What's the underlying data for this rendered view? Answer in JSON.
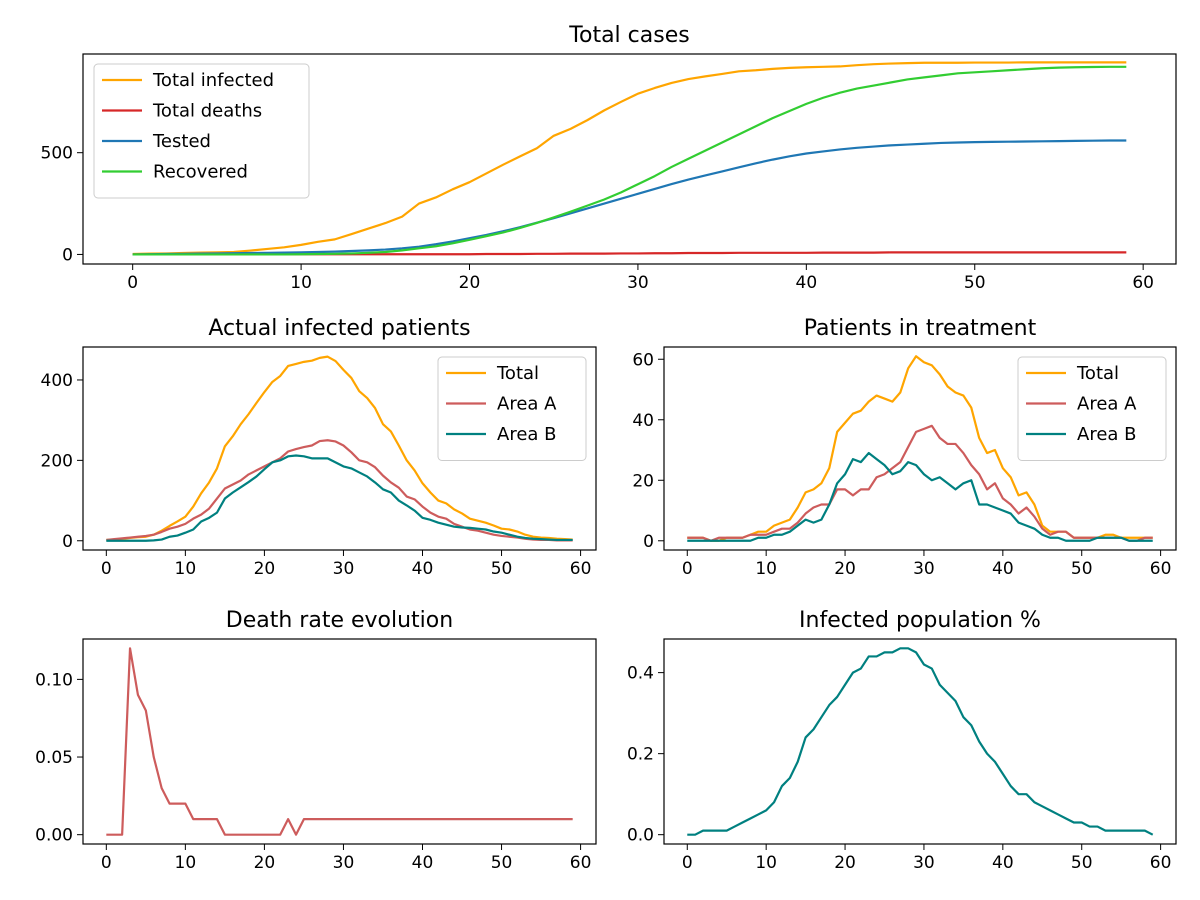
{
  "chart_data": [
    {
      "type": "line",
      "title": "Total cases",
      "xlim": [
        -2.95,
        61.95
      ],
      "ylim": [
        -47,
        985
      ],
      "xticks": [
        0,
        10,
        20,
        30,
        40,
        50,
        60
      ],
      "yticks": [
        0,
        500
      ],
      "legend_position": "upper left",
      "series": [
        {
          "name": "Total infected",
          "color": "#FFA500",
          "values": [
            2,
            4,
            5,
            7,
            9,
            10,
            12,
            19,
            27,
            35,
            47,
            62,
            74,
            100,
            127,
            154,
            186,
            250,
            280,
            320,
            355,
            398,
            441,
            482,
            522,
            583,
            617,
            660,
            708,
            750,
            790,
            818,
            843,
            862,
            875,
            887,
            900,
            905,
            912,
            917,
            920,
            922,
            924,
            930,
            935,
            938,
            940,
            942,
            942,
            942,
            943,
            943,
            943,
            944,
            944,
            944,
            944,
            944,
            944,
            944
          ]
        },
        {
          "name": "Total deaths",
          "color": "#D62728",
          "values": [
            0,
            0,
            0,
            0,
            1,
            1,
            1,
            1,
            1,
            1,
            1,
            1,
            1,
            1,
            1,
            1,
            1,
            1,
            1,
            1,
            1,
            2,
            2,
            2,
            3,
            3,
            4,
            4,
            4,
            5,
            5,
            6,
            6,
            7,
            7,
            7,
            8,
            8,
            8,
            8,
            8,
            9,
            9,
            9,
            9,
            10,
            10,
            10,
            10,
            10,
            10,
            10,
            10,
            10,
            10,
            10,
            10,
            10,
            10,
            10
          ]
        },
        {
          "name": "Tested",
          "color": "#1F77B4",
          "values": [
            0,
            1,
            2,
            3,
            4,
            5,
            6,
            7,
            8,
            9,
            10,
            12,
            14,
            17,
            20,
            24,
            30,
            38,
            50,
            64,
            80,
            96,
            114,
            134,
            156,
            178,
            202,
            226,
            250,
            274,
            298,
            322,
            346,
            368,
            388,
            408,
            428,
            448,
            466,
            482,
            496,
            506,
            516,
            524,
            530,
            536,
            540,
            544,
            548,
            550,
            552,
            553,
            554,
            555,
            556,
            557,
            558,
            559,
            560,
            560
          ]
        },
        {
          "name": "Recovered",
          "color": "#32CD32",
          "values": [
            0,
            0,
            0,
            0,
            0,
            0,
            0,
            0,
            0,
            0,
            1,
            2,
            3,
            5,
            8,
            12,
            20,
            30,
            40,
            55,
            72,
            90,
            108,
            130,
            155,
            182,
            210,
            240,
            270,
            305,
            345,
            385,
            430,
            470,
            510,
            550,
            590,
            630,
            670,
            705,
            740,
            770,
            795,
            815,
            830,
            845,
            860,
            870,
            880,
            890,
            895,
            900,
            905,
            910,
            915,
            918,
            920,
            921,
            922,
            922
          ]
        }
      ]
    },
    {
      "type": "line",
      "title": "Actual infected patients",
      "xlim": [
        -2.95,
        61.95
      ],
      "ylim": [
        -23,
        482
      ],
      "xticks": [
        0,
        10,
        20,
        30,
        40,
        50,
        60
      ],
      "yticks": [
        0,
        200,
        400
      ],
      "legend_position": "upper right",
      "series": [
        {
          "name": "Total",
          "color": "#FFA500",
          "values": [
            2,
            3,
            5,
            7,
            9,
            10,
            15,
            25,
            37,
            48,
            60,
            85,
            118,
            145,
            180,
            235,
            260,
            290,
            315,
            343,
            370,
            395,
            410,
            435,
            440,
            445,
            448,
            455,
            458,
            447,
            425,
            405,
            372,
            355,
            330,
            290,
            272,
            237,
            200,
            175,
            143,
            120,
            100,
            93,
            78,
            68,
            55,
            50,
            45,
            38,
            30,
            28,
            23,
            15,
            10,
            8,
            7,
            5,
            4,
            3
          ]
        },
        {
          "name": "Area A",
          "color": "#CD5C5C",
          "values": [
            2,
            4,
            6,
            8,
            10,
            12,
            15,
            22,
            30,
            35,
            42,
            55,
            65,
            80,
            105,
            130,
            140,
            150,
            165,
            175,
            185,
            195,
            205,
            222,
            228,
            233,
            237,
            248,
            250,
            247,
            237,
            220,
            200,
            195,
            183,
            162,
            145,
            132,
            110,
            103,
            85,
            70,
            60,
            55,
            42,
            35,
            28,
            25,
            20,
            15,
            12,
            10,
            8,
            5,
            3,
            2,
            2,
            1,
            1,
            1
          ]
        },
        {
          "name": "Area B",
          "color": "#008080",
          "values": [
            0,
            0,
            0,
            0,
            0,
            0,
            1,
            3,
            10,
            13,
            20,
            28,
            48,
            57,
            70,
            105,
            120,
            133,
            146,
            160,
            178,
            195,
            200,
            210,
            212,
            210,
            205,
            205,
            205,
            195,
            185,
            180,
            170,
            160,
            145,
            128,
            120,
            100,
            88,
            75,
            57,
            52,
            45,
            40,
            35,
            33,
            32,
            30,
            28,
            23,
            20,
            15,
            10,
            7,
            5,
            4,
            3,
            2,
            2,
            2
          ]
        }
      ]
    },
    {
      "type": "line",
      "title": "Patients in treatment",
      "xlim": [
        -2.95,
        61.95
      ],
      "ylim": [
        -3.05,
        64.05
      ],
      "xticks": [
        0,
        10,
        20,
        30,
        40,
        50,
        60
      ],
      "yticks": [
        0,
        20,
        40,
        60
      ],
      "legend_position": "upper right",
      "series": [
        {
          "name": "Total",
          "color": "#FFA500",
          "values": [
            1,
            1,
            1,
            0,
            0,
            1,
            1,
            1,
            2,
            3,
            3,
            5,
            6,
            7,
            11,
            16,
            17,
            19,
            24,
            36,
            39,
            42,
            43,
            46,
            48,
            47,
            46,
            49,
            57,
            61,
            59,
            58,
            55,
            51,
            49,
            48,
            44,
            34,
            29,
            30,
            24,
            21,
            15,
            16,
            12,
            5,
            3,
            3,
            3,
            1,
            1,
            1,
            1,
            2,
            2,
            1,
            1,
            1,
            1,
            1
          ]
        },
        {
          "name": "Area A",
          "color": "#CD5C5C",
          "values": [
            1,
            1,
            1,
            0,
            1,
            1,
            1,
            1,
            2,
            2,
            2,
            3,
            4,
            4,
            6,
            9,
            11,
            12,
            12,
            17,
            17,
            15,
            17,
            17,
            21,
            22,
            24,
            26,
            31,
            36,
            37,
            38,
            34,
            32,
            32,
            29,
            25,
            22,
            17,
            19,
            14,
            12,
            9,
            11,
            8,
            4,
            2,
            3,
            3,
            1,
            1,
            1,
            1,
            1,
            1,
            1,
            0,
            0,
            1,
            1
          ]
        },
        {
          "name": "Area B",
          "color": "#008080",
          "values": [
            0,
            0,
            0,
            0,
            0,
            0,
            0,
            0,
            0,
            1,
            1,
            2,
            2,
            3,
            5,
            7,
            6,
            7,
            12,
            19,
            22,
            27,
            26,
            29,
            27,
            25,
            22,
            23,
            26,
            25,
            22,
            20,
            21,
            19,
            17,
            19,
            20,
            12,
            12,
            11,
            10,
            9,
            6,
            5,
            4,
            2,
            1,
            1,
            0,
            0,
            0,
            0,
            1,
            1,
            1,
            1,
            0,
            0,
            0,
            0
          ]
        }
      ]
    },
    {
      "type": "line",
      "title": "Death rate evolution",
      "xlim": [
        -2.95,
        61.95
      ],
      "ylim": [
        -0.006,
        0.126
      ],
      "xticks": [
        0,
        10,
        20,
        30,
        40,
        50,
        60
      ],
      "yticks": [
        0.0,
        0.05,
        0.1
      ],
      "ytick_labels": [
        "0.00",
        "0.05",
        "0.10"
      ],
      "series": [
        {
          "color": "#CD5C5C",
          "values": [
            0,
            0,
            0,
            0.12,
            0.09,
            0.08,
            0.05,
            0.03,
            0.02,
            0.02,
            0.02,
            0.01,
            0.01,
            0.01,
            0.01,
            0,
            0,
            0,
            0,
            0,
            0,
            0,
            0,
            0.01,
            0,
            0.01,
            0.01,
            0.01,
            0.01,
            0.01,
            0.01,
            0.01,
            0.01,
            0.01,
            0.01,
            0.01,
            0.01,
            0.01,
            0.01,
            0.01,
            0.01,
            0.01,
            0.01,
            0.01,
            0.01,
            0.01,
            0.01,
            0.01,
            0.01,
            0.01,
            0.01,
            0.01,
            0.01,
            0.01,
            0.01,
            0.01,
            0.01,
            0.01,
            0.01,
            0.01
          ]
        }
      ]
    },
    {
      "type": "line",
      "title": "Infected population %",
      "xlim": [
        -2.95,
        61.95
      ],
      "ylim": [
        -0.023,
        0.483
      ],
      "xticks": [
        0,
        10,
        20,
        30,
        40,
        50,
        60
      ],
      "yticks": [
        0.0,
        0.2,
        0.4
      ],
      "ytick_labels": [
        "0.0",
        "0.2",
        "0.4"
      ],
      "series": [
        {
          "color": "#008080",
          "values": [
            0,
            0,
            0.01,
            0.01,
            0.01,
            0.01,
            0.02,
            0.03,
            0.04,
            0.05,
            0.06,
            0.08,
            0.12,
            0.14,
            0.18,
            0.24,
            0.26,
            0.29,
            0.32,
            0.34,
            0.37,
            0.4,
            0.41,
            0.44,
            0.44,
            0.45,
            0.45,
            0.46,
            0.46,
            0.45,
            0.42,
            0.41,
            0.37,
            0.35,
            0.33,
            0.29,
            0.27,
            0.23,
            0.2,
            0.18,
            0.15,
            0.12,
            0.1,
            0.1,
            0.08,
            0.07,
            0.06,
            0.05,
            0.04,
            0.03,
            0.03,
            0.02,
            0.02,
            0.01,
            0.01,
            0.01,
            0.01,
            0.01,
            0.01,
            0
          ]
        }
      ]
    }
  ]
}
